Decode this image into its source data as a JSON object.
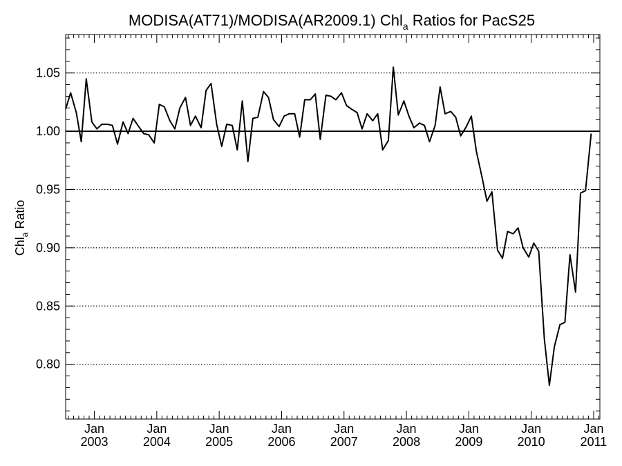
{
  "chart_data": {
    "type": "line",
    "title": {
      "prefix": "MODISA(AT71)/MODISA(AR2009.1)  Chl",
      "subscript": "a",
      "suffix": " Ratios for PacS25"
    },
    "ylabel": {
      "prefix": "Chl",
      "subscript": "a",
      "suffix": " Ratio"
    },
    "xlim": [
      2002.54,
      2011.1
    ],
    "ylim": [
      0.753,
      1.083
    ],
    "y_ticks": [
      "0.80",
      "0.85",
      "0.90",
      "0.95",
      "1.00",
      "1.05"
    ],
    "x_ticks": [
      {
        "month": "Jan",
        "year": "2003",
        "x": 2003.0
      },
      {
        "month": "Jan",
        "year": "2004",
        "x": 2004.0
      },
      {
        "month": "Jan",
        "year": "2005",
        "x": 2005.0
      },
      {
        "month": "Jan",
        "year": "2006",
        "x": 2006.0
      },
      {
        "month": "Jan",
        "year": "2007",
        "x": 2007.0
      },
      {
        "month": "Jan",
        "year": "2008",
        "x": 2008.0
      },
      {
        "month": "Jan",
        "year": "2009",
        "x": 2009.0
      },
      {
        "month": "Jan",
        "year": "2010",
        "x": 2010.0
      },
      {
        "month": "Jan",
        "year": "2011",
        "x": 2011.0
      }
    ],
    "reference_line": 1.0,
    "grid": "dotted horizontal at y ticks",
    "series": [
      {
        "x": [
          2002.54,
          2002.62,
          2002.71,
          2002.79,
          2002.87,
          2002.96,
          2003.04,
          2003.12,
          2003.21,
          2003.29,
          2003.37,
          2003.46,
          2003.54,
          2003.62,
          2003.71,
          2003.79,
          2003.87,
          2003.96,
          2004.04,
          2004.12,
          2004.21,
          2004.29,
          2004.37,
          2004.46,
          2004.54,
          2004.62,
          2004.71,
          2004.79,
          2004.87,
          2004.96,
          2005.04,
          2005.12,
          2005.21,
          2005.29,
          2005.37,
          2005.46,
          2005.54,
          2005.62,
          2005.71,
          2005.79,
          2005.87,
          2005.96,
          2006.04,
          2006.12,
          2006.21,
          2006.29,
          2006.37,
          2006.46,
          2006.54,
          2006.62,
          2006.71,
          2006.79,
          2006.87,
          2006.96,
          2007.04,
          2007.12,
          2007.21,
          2007.29,
          2007.37,
          2007.46,
          2007.54,
          2007.62,
          2007.71,
          2007.79,
          2007.87,
          2007.96,
          2008.04,
          2008.12,
          2008.21,
          2008.29,
          2008.37,
          2008.46,
          2008.54,
          2008.62,
          2008.71,
          2008.79,
          2008.87,
          2008.96,
          2009.04,
          2009.12,
          2009.21,
          2009.29,
          2009.37,
          2009.46,
          2009.54,
          2009.62,
          2009.71,
          2009.79,
          2009.87,
          2009.96,
          2010.04,
          2010.12,
          2010.21,
          2010.29,
          2010.37,
          2010.46,
          2010.54,
          2010.62,
          2010.71,
          2010.79,
          2010.87,
          2010.96
        ],
        "y": [
          1.019,
          1.033,
          1.016,
          0.991,
          1.045,
          1.008,
          1.002,
          1.006,
          1.006,
          1.005,
          0.989,
          1.008,
          0.998,
          1.011,
          1.004,
          0.998,
          0.997,
          0.99,
          1.023,
          1.021,
          1.009,
          1.002,
          1.02,
          1.029,
          1.005,
          1.013,
          1.003,
          1.035,
          1.041,
          1.006,
          0.987,
          1.006,
          1.005,
          0.984,
          1.026,
          0.974,
          1.011,
          1.012,
          1.034,
          1.029,
          1.01,
          1.004,
          1.013,
          1.015,
          1.015,
          0.995,
          1.027,
          1.027,
          1.032,
          0.993,
          1.031,
          1.03,
          1.027,
          1.033,
          1.022,
          1.019,
          1.016,
          1.002,
          1.015,
          1.009,
          1.015,
          0.984,
          0.992,
          1.055,
          1.014,
          1.026,
          1.013,
          1.003,
          1.007,
          1.005,
          0.991,
          1.005,
          1.038,
          1.015,
          1.017,
          1.012,
          0.996,
          1.004,
          1.013,
          0.983,
          0.961,
          0.94,
          0.948,
          0.898,
          0.891,
          0.914,
          0.912,
          0.917,
          0.9,
          0.892,
          0.904,
          0.897,
          0.822,
          0.782,
          0.815,
          0.834,
          0.836,
          0.894,
          0.862,
          0.947,
          0.949,
          0.998
        ]
      }
    ]
  }
}
